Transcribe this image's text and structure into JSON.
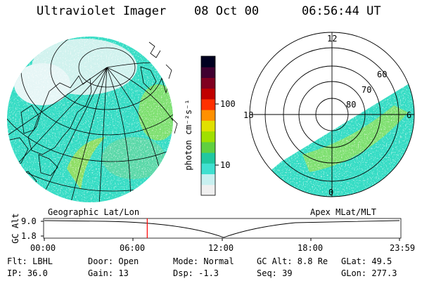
{
  "header": {
    "title": "Ultraviolet Imager",
    "date": "08 Oct 00",
    "time": "06:56:44 UT"
  },
  "left_map": {
    "label": "Geographic Lat/Lon"
  },
  "right_map": {
    "label": "Apex MLat/MLT",
    "mlt_labels": [
      "12",
      "18",
      "6",
      "0"
    ],
    "lat_labels": [
      "60",
      "70",
      "80"
    ]
  },
  "colorbar": {
    "unit_label": "photon cm⁻²s⁻¹",
    "ticks": [
      "100",
      "10"
    ],
    "scale": "log",
    "colors": [
      "#f0f0f0",
      "#c8f0f0",
      "#40e0d0",
      "#20c8a0",
      "#60d040",
      "#a0e000",
      "#e0e000",
      "#ff9000",
      "#ff3000",
      "#c00000",
      "#800020",
      "#400030",
      "#000020"
    ]
  },
  "timeline": {
    "axis_label": "GC Alt",
    "y_ticks": [
      "9.0",
      "1.8"
    ],
    "x_ticks": [
      "00:00",
      "06:00",
      "12:00",
      "18:00",
      "23:59"
    ],
    "current_time_hours": 6.95,
    "marker_color": "#ff0000"
  },
  "status": {
    "flt": "Flt: LBHL",
    "ip": "IP: 36.0",
    "door": "Door: Open",
    "gain": "Gain: 13",
    "mode": "Mode: Normal",
    "dsp": "Dsp:   -1.3",
    "gc_alt": "GC Alt: 8.8 Re",
    "seq": "Seq: 39",
    "glat": "GLat:  49.5",
    "glon": "GLon: 277.3"
  }
}
